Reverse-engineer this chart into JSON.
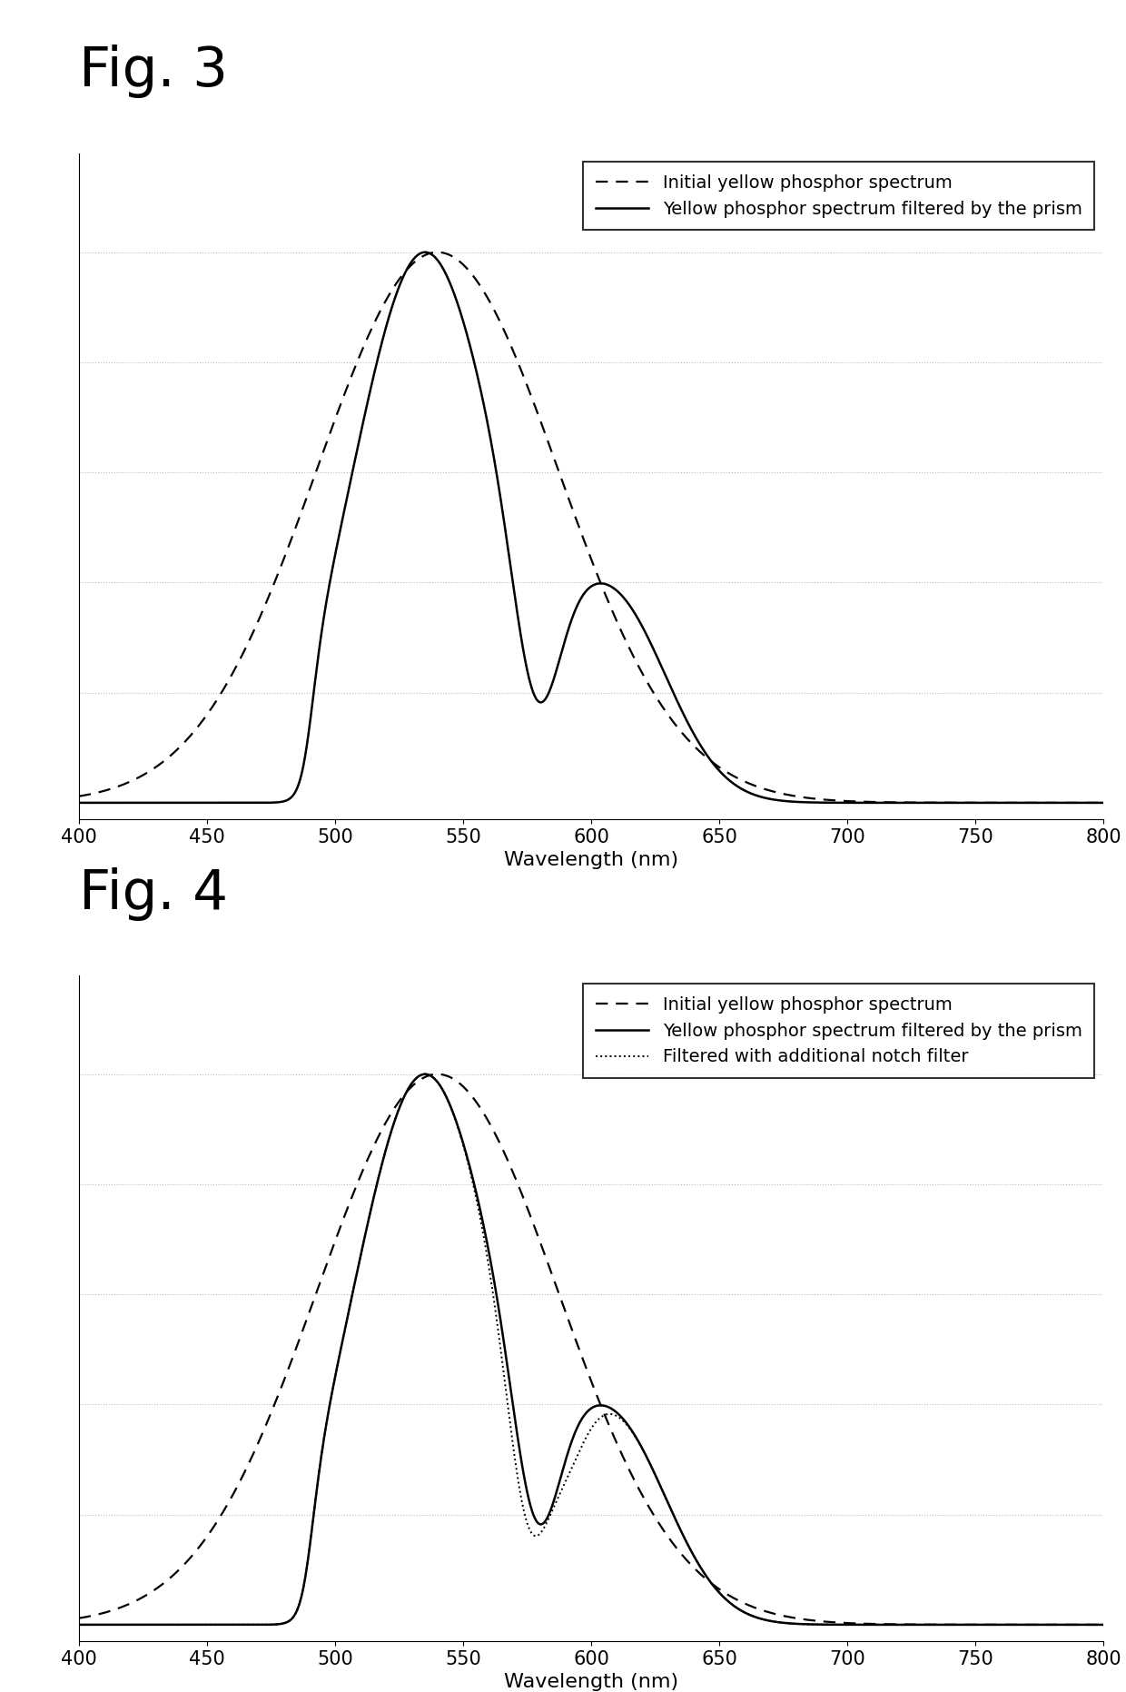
{
  "fig3_label": "Fig. 3",
  "fig4_label": "Fig. 4",
  "xlabel": "Wavelength (nm)",
  "xmin": 400,
  "xmax": 800,
  "xticks": [
    400,
    450,
    500,
    550,
    600,
    650,
    700,
    750,
    800
  ],
  "legend3": [
    "Initial yellow phosphor spectrum",
    "Yellow phosphor spectrum filtered by the prism"
  ],
  "legend4": [
    "Initial yellow phosphor spectrum",
    "Yellow phosphor spectrum filtered by the prism",
    "Filtered with additional notch filter"
  ],
  "line_color": "#000000",
  "background": "#ffffff",
  "grid_color": "#bbbbbb",
  "fig3_label_fontsize": 44,
  "fig4_label_fontsize": 44,
  "legend_fontsize": 14,
  "tick_fontsize": 15,
  "xlabel_fontsize": 16
}
